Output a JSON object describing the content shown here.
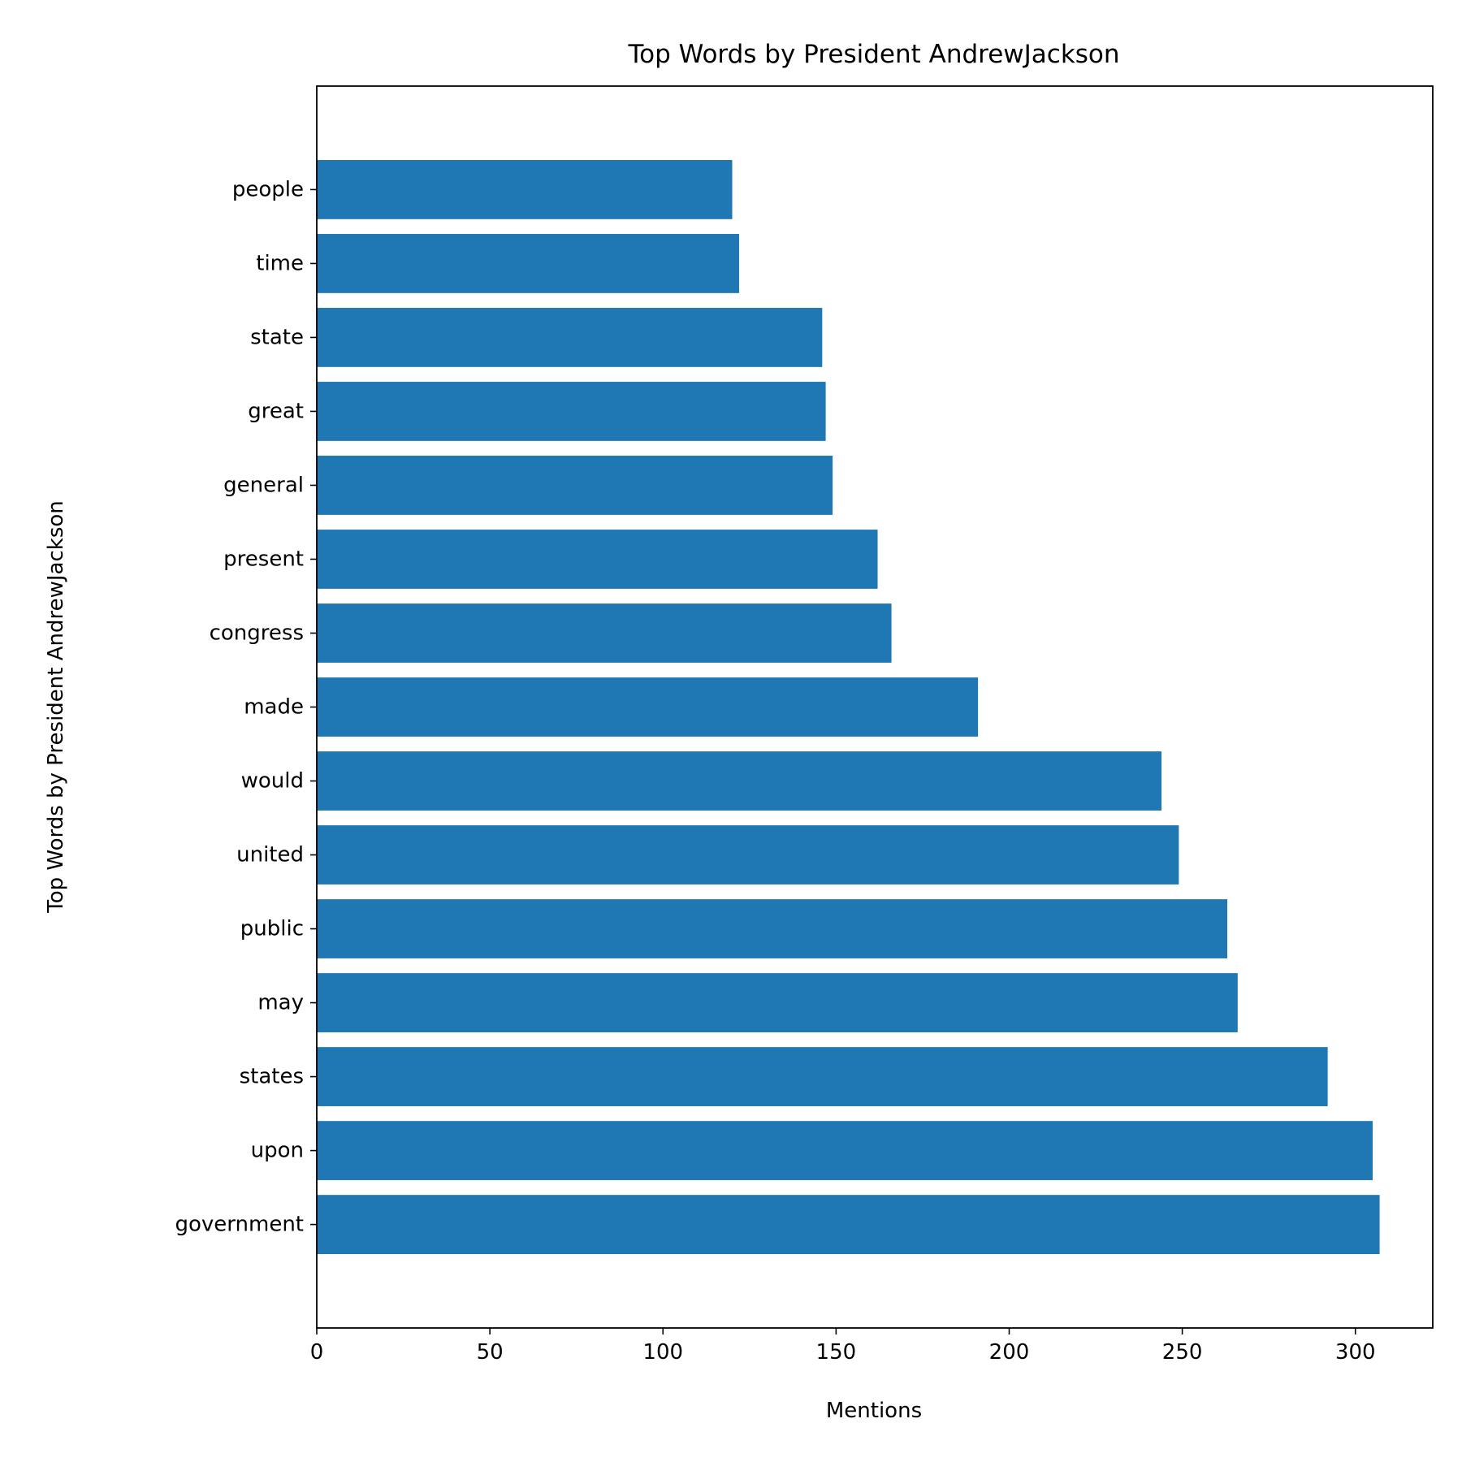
{
  "chart_data": {
    "type": "bar",
    "orientation": "horizontal",
    "title": "Top Words by President AndrewJackson",
    "xlabel": "Mentions",
    "ylabel": "Top Words by President AndrewJackson",
    "categories": [
      "government",
      "upon",
      "states",
      "may",
      "public",
      "united",
      "would",
      "made",
      "congress",
      "present",
      "general",
      "great",
      "state",
      "time",
      "people"
    ],
    "values": [
      307,
      305,
      292,
      266,
      263,
      249,
      244,
      191,
      166,
      162,
      149,
      147,
      146,
      122,
      120
    ],
    "xlim": [
      0,
      322.35
    ],
    "xticks": [
      0,
      50,
      100,
      150,
      200,
      250,
      300
    ],
    "grid": false,
    "legend": "none",
    "bar_color": "#1f77b4"
  }
}
